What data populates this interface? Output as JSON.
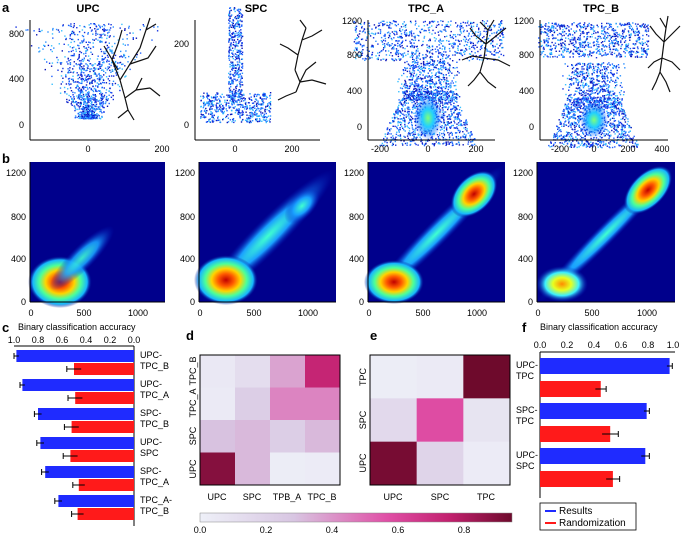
{
  "figure": {
    "panel_letters": [
      "a",
      "b",
      "c",
      "d",
      "e",
      "f"
    ],
    "row_a": {
      "panels": [
        {
          "title": "UPC",
          "yticks": [
            "800",
            "400",
            "0"
          ],
          "xticks": [
            "0",
            "200"
          ]
        },
        {
          "title": "SPC",
          "yticks": [
            "200",
            "0"
          ],
          "xticks": [
            "0",
            "200"
          ]
        },
        {
          "title": "TPC_A",
          "yticks": [
            "1200",
            "800",
            "400",
            "0"
          ],
          "xticks": [
            "-200",
            "0",
            "200"
          ]
        },
        {
          "title": "TPC_B",
          "yticks": [
            "1200",
            "800",
            "400",
            "0"
          ],
          "xticks": [
            "-200",
            "0",
            "200",
            "400"
          ]
        }
      ]
    },
    "row_b": {
      "yticks": [
        "1200",
        "800",
        "400",
        "0"
      ],
      "xticks": [
        "0",
        "500",
        "1000"
      ]
    },
    "panel_c": {
      "title": "Binary classification accuracy",
      "axis_ticks": [
        "1.0",
        "0.8",
        "0.6",
        "0.4",
        "0.2",
        "0.0"
      ],
      "labels": [
        [
          "UPC-",
          "TPC_B"
        ],
        [
          "UPC-",
          "TPC_A"
        ],
        [
          "SPC-",
          "TPC_B"
        ],
        [
          "UPC-",
          "SPC"
        ],
        [
          "SPC-",
          "TPC_A"
        ],
        [
          "TPC_A-",
          "TPC_B"
        ]
      ]
    },
    "panel_d": {
      "xlabels": [
        "UPC",
        "SPC",
        "TPB_A",
        "TPC_B"
      ],
      "ylabels": [
        "TPC_B",
        "TPC_A",
        "SPC",
        "UPC"
      ]
    },
    "panel_e": {
      "xlabels": [
        "UPC",
        "SPC",
        "TPC"
      ],
      "ylabels": [
        "TPC",
        "SPC",
        "UPC"
      ]
    },
    "colorbar": {
      "ticks": [
        "0.0",
        "0.2",
        "0.4",
        "0.6",
        "0.8"
      ]
    },
    "panel_f": {
      "title": "Binary classification accuracy",
      "axis_ticks": [
        "0.0",
        "0.2",
        "0.4",
        "0.6",
        "0.8",
        "1.0"
      ],
      "labels": [
        [
          "UPC-",
          "TPC"
        ],
        [
          "SPC-",
          "TPC"
        ],
        [
          "UPC-",
          "SPC"
        ]
      ],
      "legend": {
        "results": "Results",
        "randomization": "Randomization"
      }
    }
  },
  "chart_data": [
    {
      "type": "bar",
      "panel": "c",
      "title": "Binary classification accuracy",
      "orientation": "horizontal",
      "reversed_axis": true,
      "xlim": [
        0,
        1.0
      ],
      "categories": [
        "UPC-TPC_B",
        "UPC-TPC_A",
        "SPC-TPC_B",
        "UPC-SPC",
        "SPC-TPC_A",
        "TPC_A-TPC_B"
      ],
      "series": [
        {
          "name": "Results",
          "color": "#1f2bff",
          "values": [
            0.98,
            0.93,
            0.8,
            0.78,
            0.74,
            0.63
          ],
          "errors": [
            0.02,
            0.02,
            0.03,
            0.03,
            0.03,
            0.03
          ]
        },
        {
          "name": "Randomization",
          "color": "#ff1a1a",
          "values": [
            0.5,
            0.49,
            0.52,
            0.53,
            0.46,
            0.47
          ],
          "errors": [
            0.06,
            0.06,
            0.06,
            0.06,
            0.05,
            0.05
          ]
        }
      ]
    },
    {
      "type": "heatmap",
      "panel": "d",
      "rows": [
        "TPC_B",
        "TPC_A",
        "SPC",
        "UPC"
      ],
      "cols": [
        "UPC",
        "SPC",
        "TPB_A",
        "TPC_B"
      ],
      "values": [
        [
          0.05,
          0.12,
          0.35,
          0.7
        ],
        [
          0.04,
          0.22,
          0.42,
          0.42
        ],
        [
          0.28,
          0.3,
          0.22,
          0.3
        ],
        [
          0.85,
          0.3,
          0.02,
          0.03
        ]
      ],
      "vmin": 0,
      "vmax": 0.9
    },
    {
      "type": "heatmap",
      "panel": "e",
      "rows": [
        "TPC",
        "SPC",
        "UPC"
      ],
      "cols": [
        "UPC",
        "SPC",
        "TPC"
      ],
      "values": [
        [
          0.02,
          0.04,
          0.95
        ],
        [
          0.15,
          0.55,
          0.08
        ],
        [
          0.88,
          0.18,
          0.03
        ]
      ],
      "vmin": 0,
      "vmax": 0.9
    },
    {
      "type": "bar",
      "panel": "f",
      "title": "Binary classification accuracy",
      "orientation": "horizontal",
      "xlim": [
        0,
        1.0
      ],
      "categories": [
        "UPC-TPC",
        "SPC-TPC",
        "UPC-SPC"
      ],
      "series": [
        {
          "name": "Results",
          "color": "#1f2bff",
          "values": [
            0.96,
            0.79,
            0.78
          ],
          "errors": [
            0.02,
            0.02,
            0.03
          ]
        },
        {
          "name": "Randomization",
          "color": "#ff1a1a",
          "values": [
            0.45,
            0.52,
            0.54
          ],
          "errors": [
            0.04,
            0.06,
            0.05
          ]
        }
      ]
    }
  ]
}
